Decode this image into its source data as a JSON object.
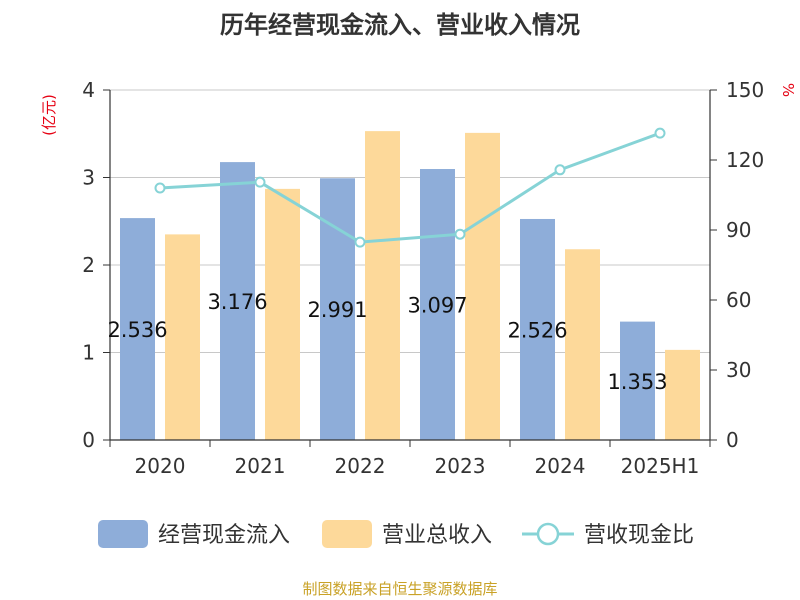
{
  "chart_data": {
    "type": "bar",
    "title": "历年经营现金流入、营业收入情况",
    "categories": [
      "2020",
      "2021",
      "2022",
      "2023",
      "2024",
      "2025H1"
    ],
    "series": [
      {
        "name": "经营现金流入",
        "type": "bar",
        "axis": "left",
        "color": "#8eadd9",
        "values": [
          2.536,
          3.176,
          2.991,
          3.097,
          2.526,
          1.353
        ],
        "labels": [
          "2.536",
          "3.176",
          "2.991",
          "3.097",
          "2.526",
          "1.353"
        ]
      },
      {
        "name": "营业总收入",
        "type": "bar",
        "axis": "left",
        "color": "#fdd99a",
        "values": [
          2.35,
          2.87,
          3.53,
          3.51,
          2.18,
          1.03
        ]
      },
      {
        "name": "营收现金比",
        "type": "line",
        "axis": "right",
        "color": "#86d3d6",
        "values": [
          108.0,
          110.5,
          84.8,
          88.2,
          115.8,
          131.5
        ]
      }
    ],
    "y_left": {
      "unit": "(亿元)",
      "ylim": [
        0,
        4
      ],
      "ticks": [
        "0",
        "1",
        "2",
        "3",
        "4"
      ],
      "tick_values": [
        0,
        1,
        2,
        3,
        4
      ]
    },
    "y_right": {
      "unit": "%",
      "ylim": [
        0,
        150
      ],
      "ticks": [
        "0",
        "30",
        "60",
        "90",
        "120",
        "150"
      ],
      "tick_values": [
        0,
        30,
        60,
        90,
        120,
        150
      ]
    },
    "grid": true,
    "legend_position": "bottom"
  },
  "source_note": "制图数据来自恒生聚源数据库"
}
